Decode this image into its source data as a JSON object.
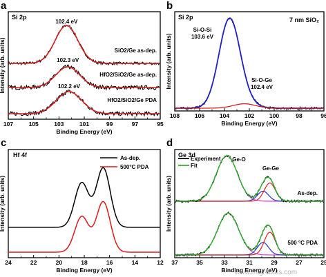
{
  "chart_data": [
    {
      "id": "a",
      "type": "line",
      "letter": "a",
      "title": "Si 2p",
      "xlabel": "Binding Energy (eV)",
      "ylabel": "Intensity (arb. units)",
      "xlim": [
        107,
        95
      ],
      "xticks": [
        107,
        105,
        103,
        101,
        99,
        97,
        95
      ],
      "series": [
        {
          "name": "SiO2/Ge as-dep.",
          "peak_label": "102.4 eV",
          "center": 102.4,
          "width": 0.9,
          "color": "#d42020"
        },
        {
          "name": "HfO2/SiO2/Ge as-dep.",
          "peak_label": "102.3 eV",
          "center": 102.3,
          "width": 0.95,
          "color": "#d42020"
        },
        {
          "name": "HfO2/SiO2/Ge PDA",
          "peak_label": "102.2 eV",
          "center": 102.2,
          "width": 1.0,
          "color": "#d42020"
        }
      ]
    },
    {
      "id": "b",
      "type": "line",
      "letter": "b",
      "title": "Si 2p",
      "inset_label": "7 nm SiO₂",
      "xlabel": "Binding Energy (eV)",
      "ylabel": "Intensity (arb. units)",
      "xlim": [
        108,
        96
      ],
      "xticks": [
        108,
        106,
        104,
        102,
        100,
        98,
        96
      ],
      "peaks": [
        {
          "name": "Si-O-Si",
          "energy_label": "103.6 eV",
          "center": 103.6,
          "width": 0.85,
          "amplitude": 1.0,
          "color": "#2020c8"
        },
        {
          "name": "Si-O-Ge",
          "energy_label": "102.4 eV",
          "center": 102.4,
          "width": 0.9,
          "amplitude": 0.05,
          "color": "#d42020"
        }
      ]
    },
    {
      "id": "c",
      "type": "line",
      "letter": "c",
      "title": "Hf 4f",
      "xlabel": "Binding Energy (eV)",
      "ylabel": "Intensity (arb. units)",
      "xlim": [
        24,
        12
      ],
      "xticks": [
        24,
        22,
        20,
        18,
        16,
        14,
        12
      ],
      "series": [
        {
          "name": "As-dep.",
          "color": "#000000",
          "peaks": [
            [
              18.2,
              0.75
            ],
            [
              16.5,
              1.0
            ]
          ],
          "offset": 0.42
        },
        {
          "name": "500°C PDA",
          "color": "#e01818",
          "peaks": [
            [
              18.2,
              0.6
            ],
            [
              16.5,
              0.85
            ]
          ],
          "offset": 0.0
        }
      ]
    },
    {
      "id": "d",
      "type": "line",
      "letter": "d",
      "title": "Ge 3d",
      "xlabel": "Binding Energy (eV)",
      "ylabel": "Intensity (arb. units)",
      "xlim": [
        37,
        25
      ],
      "xticks": [
        37,
        35,
        33,
        31,
        29,
        27,
        25
      ],
      "legend": [
        "Experiment",
        "Fit"
      ],
      "legend_colors": [
        "#000000",
        "#30b030"
      ],
      "labels": {
        "geo": "Ge-O",
        "gege": "Ge-Ge"
      },
      "series": [
        {
          "name": "As-dep.",
          "geo_center": 32.8,
          "geo_amp": 1.0,
          "gege_amp": 0.4
        },
        {
          "name": "500 °C PDA",
          "geo_center": 32.7,
          "geo_amp": 0.92,
          "gege_amp": 0.5
        }
      ]
    }
  ],
  "watermark": "www.mfgrobots.com"
}
